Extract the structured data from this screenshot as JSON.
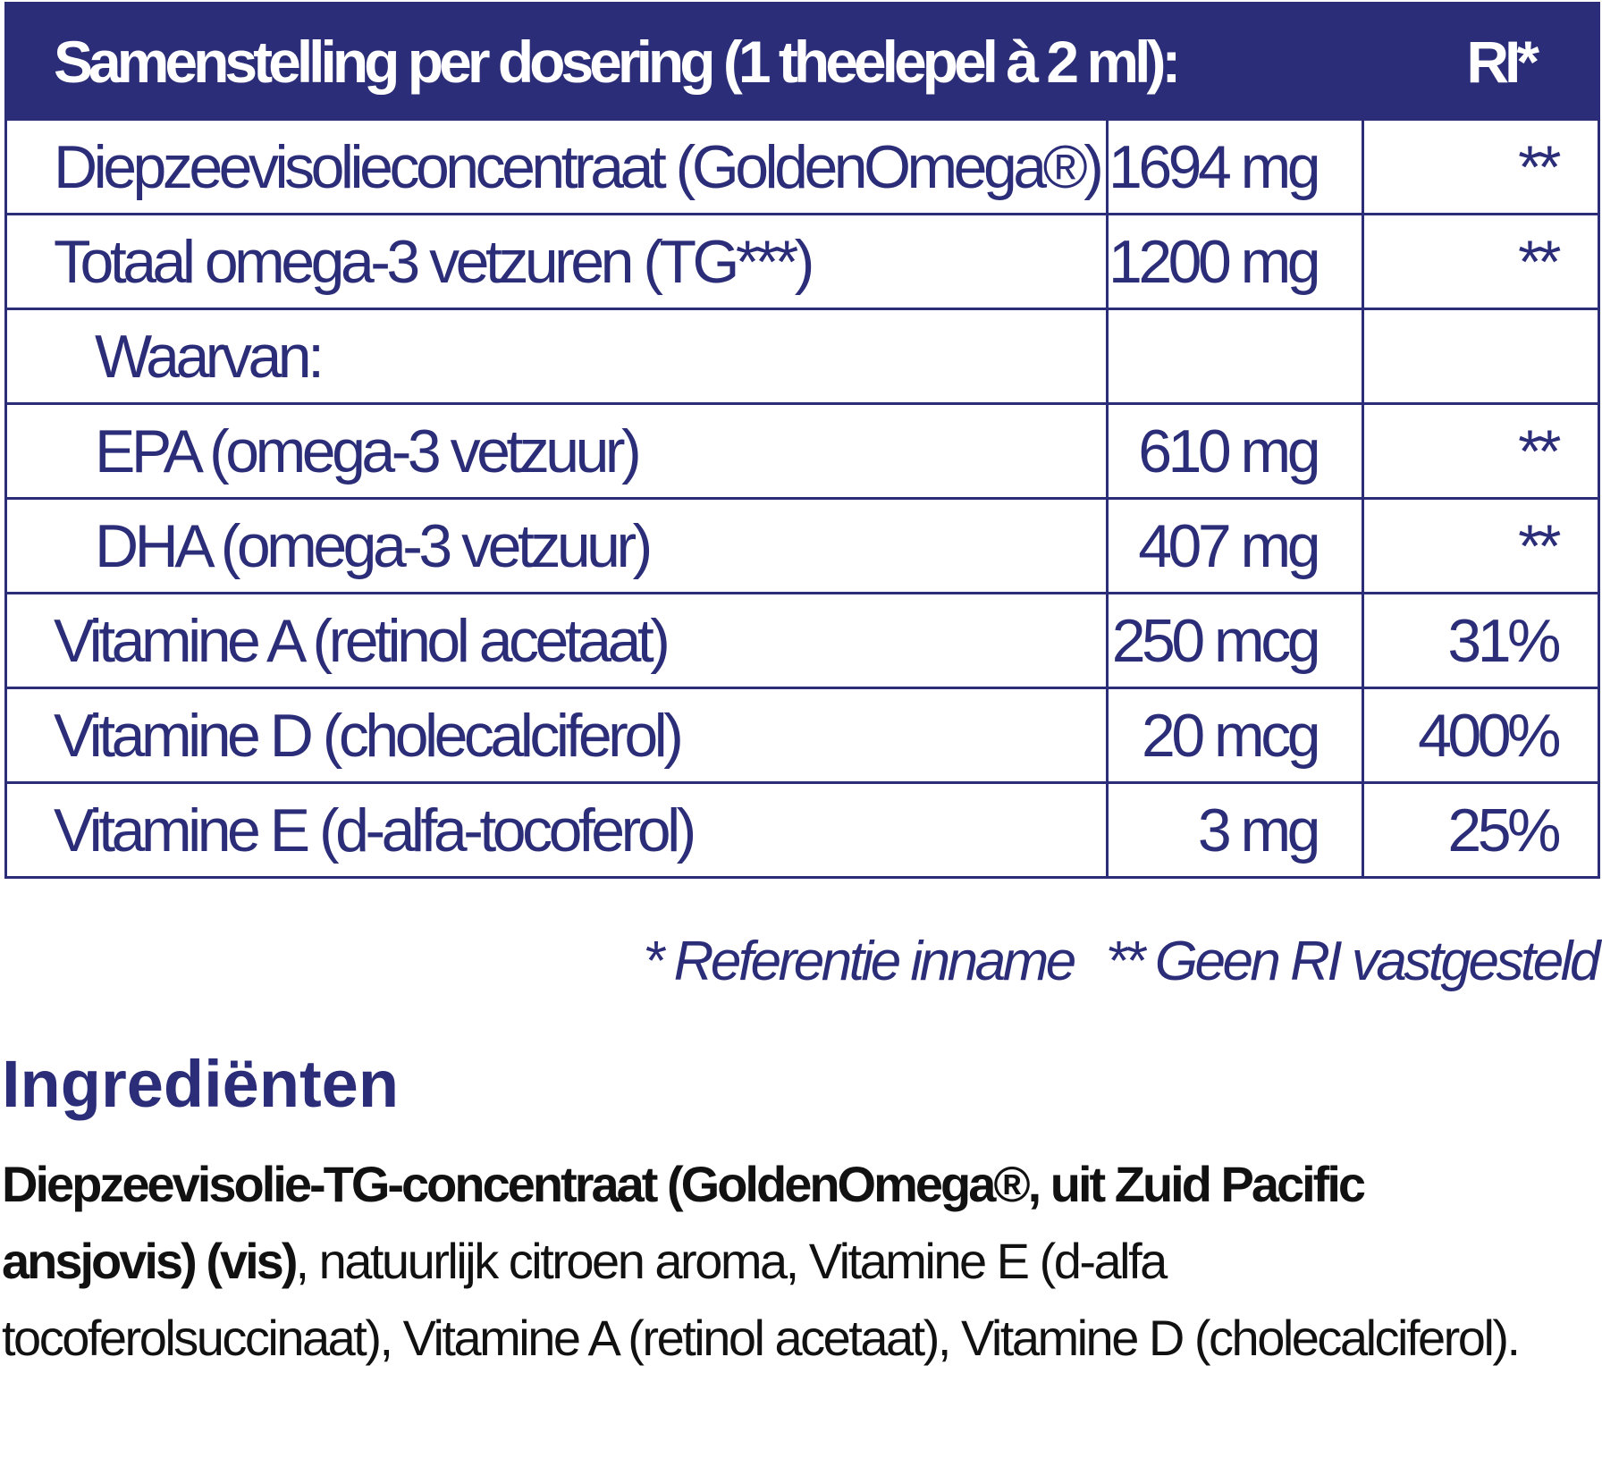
{
  "header": {
    "title": "Samenstelling per dosering (1 theelepel à 2 ml):",
    "ri": "RI*"
  },
  "table": {
    "rows": [
      [
        "Diepzeevisolieconcentraat (GoldenOmega®)",
        "1694 mg",
        "**"
      ],
      [
        "Totaal omega-3 vetzuren (TG***)",
        "1200 mg",
        "**"
      ],
      [
        "Waarvan:"
      ],
      [
        "EPA (omega-3 vetzuur)",
        "610 mg",
        "**"
      ],
      [
        "DHA (omega-3 vetzuur)",
        "407 mg",
        "**"
      ],
      [
        "Vitamine A (retinol acetaat)",
        "250 mcg",
        "31%"
      ],
      [
        "Vitamine D (cholecalciferol)",
        "20 mcg",
        "400%"
      ],
      [
        "Vitamine E (d-alfa-tocoferol)",
        "3 mg",
        "25%"
      ]
    ]
  },
  "footnote": [
    "* Referentie inname",
    "** Geen RI vastgesteld"
  ],
  "ingredients": {
    "title": "Ingrediënten",
    "bold": "Diepzeevisolie-TG-concentraat (GoldenOmega®, uit Zuid Pacific ansjovis) (vis)",
    "text": ", natuurlijk citroen aroma, Vitamine E (d-alfa tocoferolsuccinaat), Vitamine A (retinol acetaat), Vitamine D (cholecalciferol)."
  }
}
